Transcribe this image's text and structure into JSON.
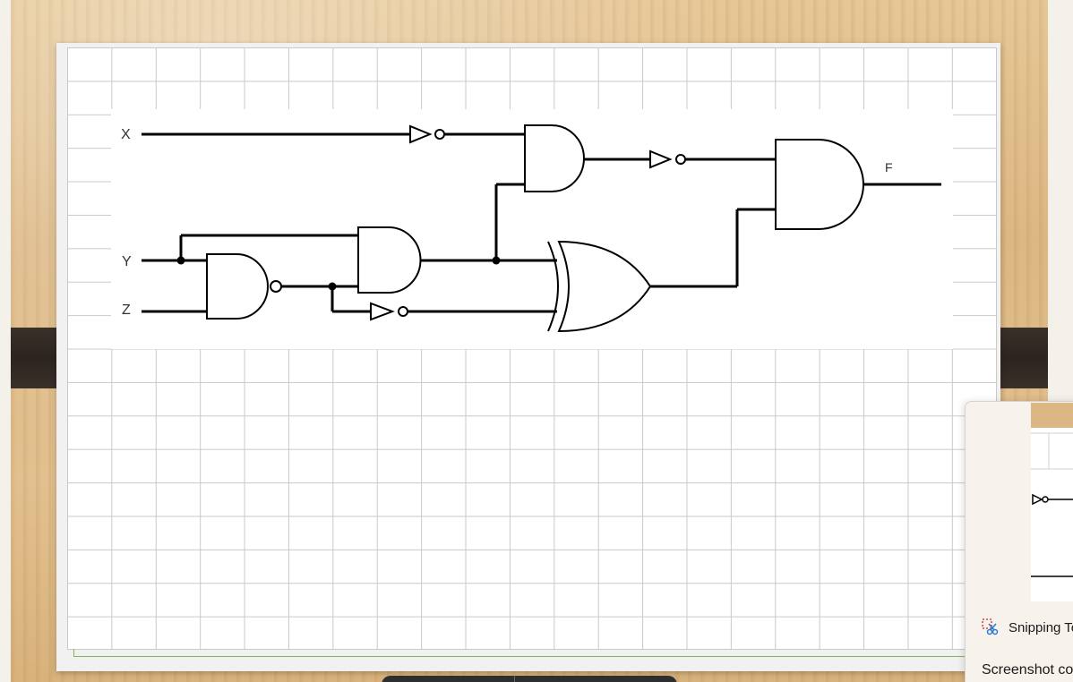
{
  "circuit": {
    "inputs": [
      "X",
      "Y",
      "Z"
    ],
    "output": "F",
    "gates": [
      "NOT",
      "AND",
      "NOT",
      "AND",
      "NAND",
      "AND",
      "NOT",
      "XOR"
    ]
  },
  "notification": {
    "app_name": "Snipping To",
    "message": "Screenshot co",
    "icon": "snipping-tool-icon"
  },
  "colors": {
    "wood": "#dcb783",
    "grid_line": "#c9c9c9",
    "wire": "#000000",
    "clip": "#2c241f"
  }
}
